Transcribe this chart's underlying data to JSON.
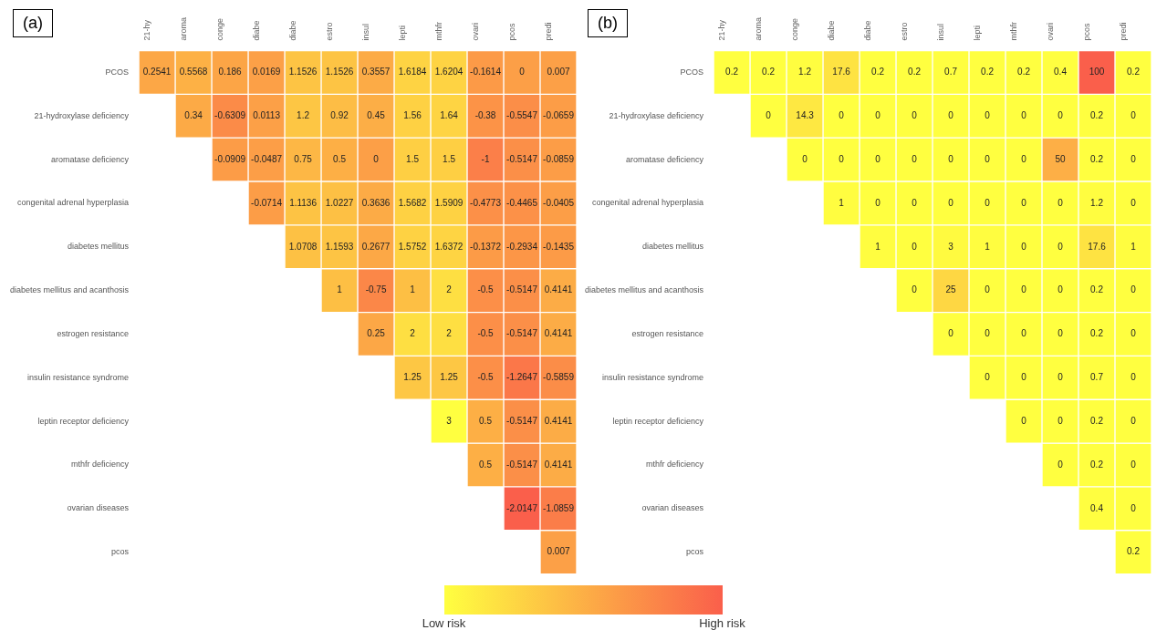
{
  "chart_data": [
    {
      "type": "heatmap",
      "title": "(a)",
      "categories": [
        "21-hy",
        "aroma",
        "conge",
        "diabe",
        "diabe",
        "estro",
        "insul",
        "lepti",
        "mthfr",
        "ovari",
        "pcos",
        "predi"
      ],
      "y_categories": [
        "PCOS",
        "21-hydroxylase deficiency",
        "aromatase deficiency",
        "congenital adrenal hyperplasia",
        "diabetes mellitus",
        "diabetes mellitus and acanthosis",
        "estrogen resistance",
        "insulin resistance syndrome",
        "leptin receptor deficiency",
        "mthfr deficiency",
        "ovarian diseases",
        "pcos"
      ],
      "cells": [
        [
          0.2541,
          0.5568,
          0.186,
          0.0169,
          1.1526,
          1.1526,
          0.3557,
          1.6184,
          1.6204,
          -0.1614,
          0,
          0.007
        ],
        [
          null,
          0.34,
          -0.6309,
          0.0113,
          1.2,
          0.92,
          0.45,
          1.56,
          1.64,
          -0.38,
          -0.5547,
          -0.0659
        ],
        [
          null,
          null,
          -0.0909,
          -0.0487,
          0.75,
          0.5,
          0,
          1.5,
          1.5,
          -1,
          -0.5147,
          -0.0859
        ],
        [
          null,
          null,
          null,
          -0.0714,
          1.1136,
          1.0227,
          0.3636,
          1.5682,
          1.5909,
          -0.4773,
          -0.4465,
          -0.0405
        ],
        [
          null,
          null,
          null,
          null,
          1.0708,
          1.1593,
          0.2677,
          1.5752,
          1.6372,
          -0.1372,
          -0.2934,
          -0.1435
        ],
        [
          null,
          null,
          null,
          null,
          null,
          1,
          -0.75,
          1,
          2,
          -0.5,
          -0.5147,
          0.4141
        ],
        [
          null,
          null,
          null,
          null,
          null,
          null,
          0.25,
          2,
          2,
          -0.5,
          -0.5147,
          0.4141
        ],
        [
          null,
          null,
          null,
          null,
          null,
          null,
          null,
          1.25,
          1.25,
          -0.5,
          -1.2647,
          -0.5859
        ],
        [
          null,
          null,
          null,
          null,
          null,
          null,
          null,
          null,
          3,
          0.5,
          -0.5147,
          0.4141
        ],
        [
          null,
          null,
          null,
          null,
          null,
          null,
          null,
          null,
          null,
          0.5,
          -0.5147,
          0.4141
        ],
        [
          null,
          null,
          null,
          null,
          null,
          null,
          null,
          null,
          null,
          null,
          -2.0147,
          -1.0859
        ],
        [
          null,
          null,
          null,
          null,
          null,
          null,
          null,
          null,
          null,
          null,
          null,
          0.007
        ]
      ],
      "clim": [
        3,
        -2.0147
      ],
      "cticks": [
        {
          "value": 3,
          "label": "Low risk"
        },
        {
          "value": -2.0147,
          "label": "High risk"
        }
      ],
      "data_labels": true
    },
    {
      "type": "heatmap",
      "title": "(b)",
      "categories": [
        "21-hy",
        "aroma",
        "conge",
        "diabe",
        "diabe",
        "estro",
        "insul",
        "lepti",
        "mthfr",
        "ovari",
        "pcos",
        "predi"
      ],
      "y_categories": [
        "PCOS",
        "21-hydroxylase deficiency",
        "aromatase deficiency",
        "congenital adrenal hyperplasia",
        "diabetes mellitus",
        "diabetes mellitus and acanthosis",
        "estrogen resistance",
        "insulin resistance syndrome",
        "leptin receptor deficiency",
        "mthfr deficiency",
        "ovarian diseases",
        "pcos"
      ],
      "cells": [
        [
          0.2,
          0.2,
          1.2,
          17.6,
          0.2,
          0.2,
          0.7,
          0.2,
          0.2,
          0.4,
          100,
          0.2
        ],
        [
          null,
          0,
          14.3,
          0,
          0,
          0,
          0,
          0,
          0,
          0,
          0.2,
          0
        ],
        [
          null,
          null,
          0,
          0,
          0,
          0,
          0,
          0,
          0,
          50,
          0.2,
          0
        ],
        [
          null,
          null,
          null,
          1,
          0,
          0,
          0,
          0,
          0,
          0,
          1.2,
          0
        ],
        [
          null,
          null,
          null,
          null,
          1,
          0,
          3,
          1,
          0,
          0,
          17.6,
          1
        ],
        [
          null,
          null,
          null,
          null,
          null,
          0,
          25,
          0,
          0,
          0,
          0.2,
          0
        ],
        [
          null,
          null,
          null,
          null,
          null,
          null,
          0,
          0,
          0,
          0,
          0.2,
          0
        ],
        [
          null,
          null,
          null,
          null,
          null,
          null,
          null,
          0,
          0,
          0,
          0.7,
          0
        ],
        [
          null,
          null,
          null,
          null,
          null,
          null,
          null,
          null,
          0,
          0,
          0.2,
          0
        ],
        [
          null,
          null,
          null,
          null,
          null,
          null,
          null,
          null,
          null,
          0,
          0.2,
          0
        ],
        [
          null,
          null,
          null,
          null,
          null,
          null,
          null,
          null,
          null,
          null,
          0.4,
          0
        ],
        [
          null,
          null,
          null,
          null,
          null,
          null,
          null,
          null,
          null,
          null,
          null,
          0.2
        ]
      ],
      "data_labels": true
    }
  ]
}
